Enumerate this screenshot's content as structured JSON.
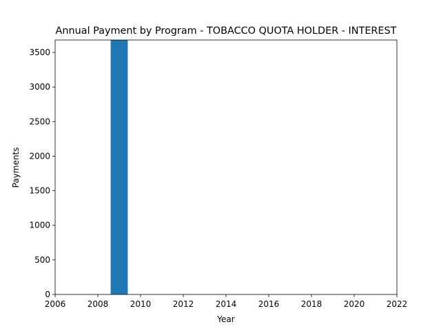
{
  "chart_data": {
    "type": "bar",
    "title": "Annual Payment by Program - TOBACCO QUOTA HOLDER - INTEREST",
    "xlabel": "Year",
    "ylabel": "Payments",
    "x": [
      2009
    ],
    "values": [
      3680
    ],
    "xlim": [
      2006,
      2022
    ],
    "ylim": [
      0,
      3680
    ],
    "xticks": [
      "2006",
      "2008",
      "2010",
      "2012",
      "2014",
      "2016",
      "2018",
      "2020",
      "2022"
    ],
    "yticks": [
      "0",
      "500",
      "1000",
      "1500",
      "2000",
      "2500",
      "3000",
      "3500"
    ],
    "bar_color": "#1f77b4",
    "grid": false,
    "legend": "none"
  }
}
